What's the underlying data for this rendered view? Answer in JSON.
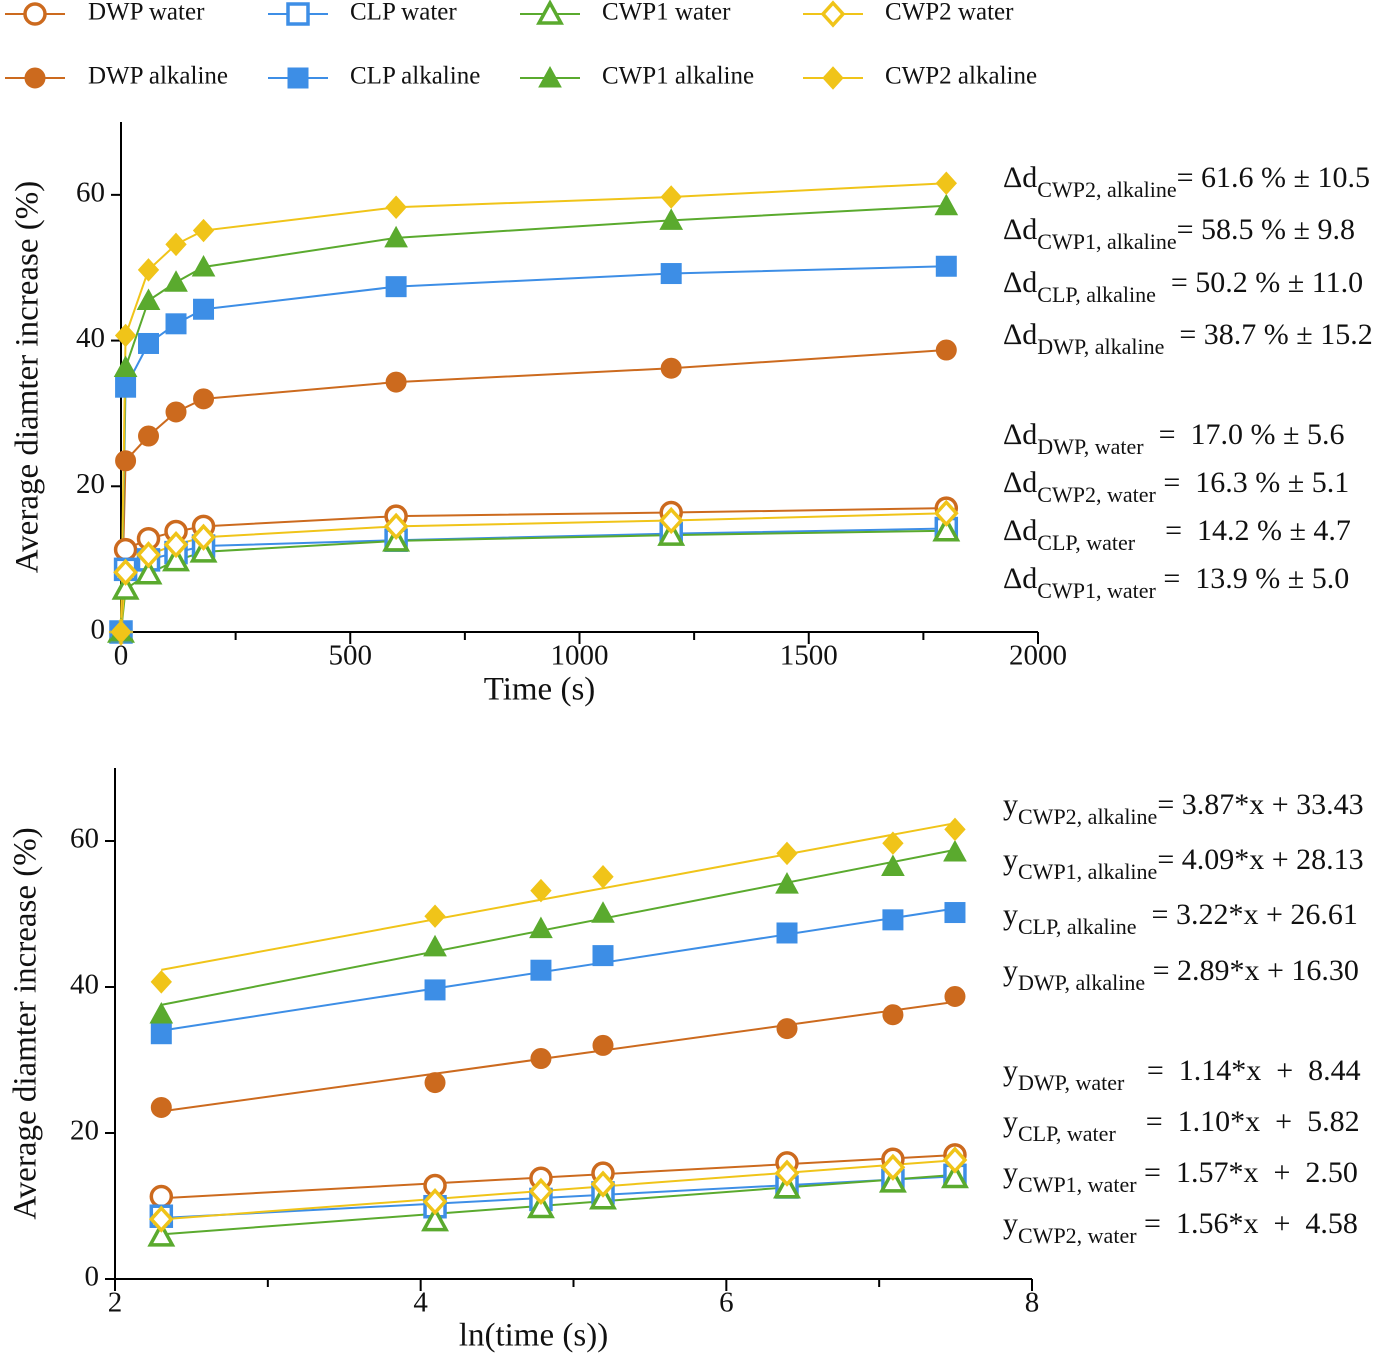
{
  "chart_data": [
    {
      "type": "line",
      "x_label": "Time (s)",
      "y_label": "Average diamter increase (%)",
      "xlim": [
        0,
        2000
      ],
      "xticks": [
        0,
        500,
        1000,
        1500,
        2000
      ],
      "xminorticks": [
        250,
        750,
        1250,
        1750
      ],
      "ylim": [
        0,
        70
      ],
      "yticks": [
        0,
        20,
        40,
        60
      ],
      "x": [
        0,
        10,
        60,
        120,
        180,
        600,
        1200,
        1800
      ],
      "series": [
        {
          "name": "DWP water",
          "color": "#cc6a1e",
          "marker": "circle",
          "filled": false,
          "values": [
            0,
            11.3,
            12.8,
            13.8,
            14.5,
            15.9,
            16.4,
            17.0
          ]
        },
        {
          "name": "CLP water",
          "color": "#3d8ee6",
          "marker": "square",
          "filled": false,
          "values": [
            0,
            8.6,
            9.9,
            10.9,
            11.8,
            12.6,
            13.5,
            14.2
          ]
        },
        {
          "name": "CWP1 water",
          "color": "#5aaa2e",
          "marker": "triangle",
          "filled": false,
          "values": [
            0,
            5.9,
            8.0,
            9.8,
            11.0,
            12.5,
            13.3,
            13.9
          ]
        },
        {
          "name": "CWP2 water",
          "color": "#f0c419",
          "marker": "diamond",
          "filled": false,
          "values": [
            0,
            8.2,
            10.6,
            12.0,
            13.0,
            14.5,
            15.3,
            16.3
          ]
        },
        {
          "name": "DWP alkaline",
          "color": "#cc6a1e",
          "marker": "circle",
          "filled": true,
          "values": [
            0,
            23.5,
            26.9,
            30.2,
            32.0,
            34.3,
            36.2,
            38.7
          ]
        },
        {
          "name": "CLP alkaline",
          "color": "#3d8ee6",
          "marker": "square",
          "filled": true,
          "values": [
            0,
            33.6,
            39.6,
            42.3,
            44.3,
            47.4,
            49.2,
            50.2
          ]
        },
        {
          "name": "CWP1 alkaline",
          "color": "#5aaa2e",
          "marker": "triangle",
          "filled": true,
          "values": [
            0,
            36.3,
            45.5,
            48.0,
            50.1,
            54.1,
            56.5,
            58.5
          ]
        },
        {
          "name": "CWP2 alkaline",
          "color": "#f0c419",
          "marker": "diamond",
          "filled": true,
          "values": [
            0,
            40.7,
            49.7,
            53.2,
            55.1,
            58.3,
            59.7,
            61.6
          ]
        }
      ],
      "annotations": [
        {
          "main": "Δd",
          "sub": "CWP2, alkaline",
          "rest": "= 61.6 % ± 10.5"
        },
        {
          "main": "Δd",
          "sub": "CWP1, alkaline",
          "rest": "= 58.5 % ± 9.8"
        },
        {
          "main": "Δd",
          "sub": "CLP, alkaline",
          "rest": "  = 50.2 % ± 11.0"
        },
        {
          "main": "Δd",
          "sub": "DWP, alkaline",
          "rest": "  = 38.7 % ± 15.2"
        },
        {
          "main": "Δd",
          "sub": "DWP, water",
          "rest": "  =  17.0 % ± 5.6"
        },
        {
          "main": "Δd",
          "sub": "CWP2, water",
          "rest": " =  16.3 % ± 5.1"
        },
        {
          "main": "Δd",
          "sub": "CLP, water",
          "rest": "    =  14.2 % ± 4.7"
        },
        {
          "main": "Δd",
          "sub": "CWP1, water",
          "rest": " =  13.9 % ± 5.0"
        }
      ]
    },
    {
      "type": "scatter",
      "x_label": "ln(time (s))",
      "y_label": "Average diamter increase (%)",
      "xlim": [
        2,
        8
      ],
      "xticks": [
        2,
        4,
        6,
        8
      ],
      "xminorticks": [
        3,
        5,
        7
      ],
      "ylim": [
        0,
        70
      ],
      "yticks": [
        0,
        20,
        40,
        60
      ],
      "x": [
        2.303,
        4.094,
        4.787,
        5.193,
        6.397,
        7.09,
        7.496
      ],
      "series": [
        {
          "color": "#cc6a1e",
          "marker": "circle",
          "filled": false,
          "values": [
            11.3,
            12.8,
            13.8,
            14.5,
            15.9,
            16.4,
            17.0
          ],
          "slope": 1.14,
          "intercept": 8.44
        },
        {
          "color": "#3d8ee6",
          "marker": "square",
          "filled": false,
          "values": [
            8.6,
            9.9,
            10.9,
            11.8,
            12.6,
            13.5,
            14.2
          ],
          "slope": 1.1,
          "intercept": 5.82
        },
        {
          "color": "#5aaa2e",
          "marker": "triangle",
          "filled": false,
          "values": [
            5.9,
            8.0,
            9.8,
            11.0,
            12.5,
            13.3,
            13.9
          ],
          "slope": 1.57,
          "intercept": 2.5
        },
        {
          "color": "#f0c419",
          "marker": "diamond",
          "filled": false,
          "values": [
            8.2,
            10.6,
            12.0,
            13.0,
            14.5,
            15.3,
            16.3
          ],
          "slope": 1.56,
          "intercept": 4.58
        },
        {
          "color": "#cc6a1e",
          "marker": "circle",
          "filled": true,
          "values": [
            23.5,
            26.9,
            30.2,
            32.0,
            34.3,
            36.2,
            38.7
          ],
          "slope": 2.89,
          "intercept": 16.3
        },
        {
          "color": "#3d8ee6",
          "marker": "square",
          "filled": true,
          "values": [
            33.6,
            39.6,
            42.3,
            44.3,
            47.4,
            49.2,
            50.2
          ],
          "slope": 3.22,
          "intercept": 26.61
        },
        {
          "color": "#5aaa2e",
          "marker": "triangle",
          "filled": true,
          "values": [
            36.3,
            45.5,
            48.0,
            50.1,
            54.1,
            56.5,
            58.5
          ],
          "slope": 4.09,
          "intercept": 28.13
        },
        {
          "color": "#f0c419",
          "marker": "diamond",
          "filled": true,
          "values": [
            40.7,
            49.7,
            53.2,
            55.1,
            58.3,
            59.7,
            61.6
          ],
          "slope": 3.87,
          "intercept": 33.43
        }
      ],
      "annotations": [
        {
          "main": "y",
          "sub": "CWP2, alkaline",
          "rest": "= 3.87*x + 33.43"
        },
        {
          "main": "y",
          "sub": "CWP1, alkaline",
          "rest": "= 4.09*x + 28.13"
        },
        {
          "main": "y",
          "sub": "CLP, alkaline",
          "rest": "  = 3.22*x + 26.61"
        },
        {
          "main": "y",
          "sub": "DWP, alkaline",
          "rest": " = 2.89*x + 16.30"
        },
        {
          "main": "y",
          "sub": "DWP, water",
          "rest": "   =  1.14*x  +  8.44"
        },
        {
          "main": "y",
          "sub": "CLP, water",
          "rest": "    =  1.10*x  +  5.82"
        },
        {
          "main": "y",
          "sub": "CWP1, water",
          "rest": " =  1.57*x  +  2.50"
        },
        {
          "main": "y",
          "sub": "CWP2, water",
          "rest": " =  1.56*x  +  4.58"
        }
      ]
    }
  ]
}
